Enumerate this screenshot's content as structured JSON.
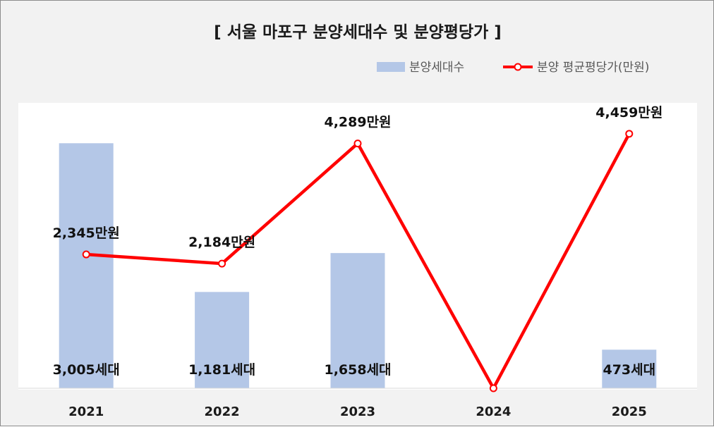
{
  "chart_data": {
    "type": "bar+line",
    "title": "[ 서울 마포구 분양세대수 및 분양평당가 ]",
    "categories": [
      "2021",
      "2022",
      "2023",
      "2024",
      "2025"
    ],
    "series": [
      {
        "name": "분양세대수",
        "type": "bar",
        "color": "#b4c7e7",
        "values": [
          3005,
          1181,
          1658,
          0,
          473
        ],
        "labels": [
          "3,005세대",
          "1,181세대",
          "1,658세대",
          "",
          "473세대"
        ]
      },
      {
        "name": "분양 평균평당가(만원)",
        "type": "line",
        "color": "#ff0000",
        "values": [
          2345,
          2184,
          4289,
          0,
          4459
        ],
        "labels": [
          "2,345만원",
          "2,184만원",
          "4,289만원",
          "",
          "4,459만원"
        ]
      }
    ],
    "bar_axis_range": [
      0,
      3500
    ],
    "line_axis_range": [
      0,
      5000
    ],
    "legend": "top-right",
    "grid": false
  }
}
